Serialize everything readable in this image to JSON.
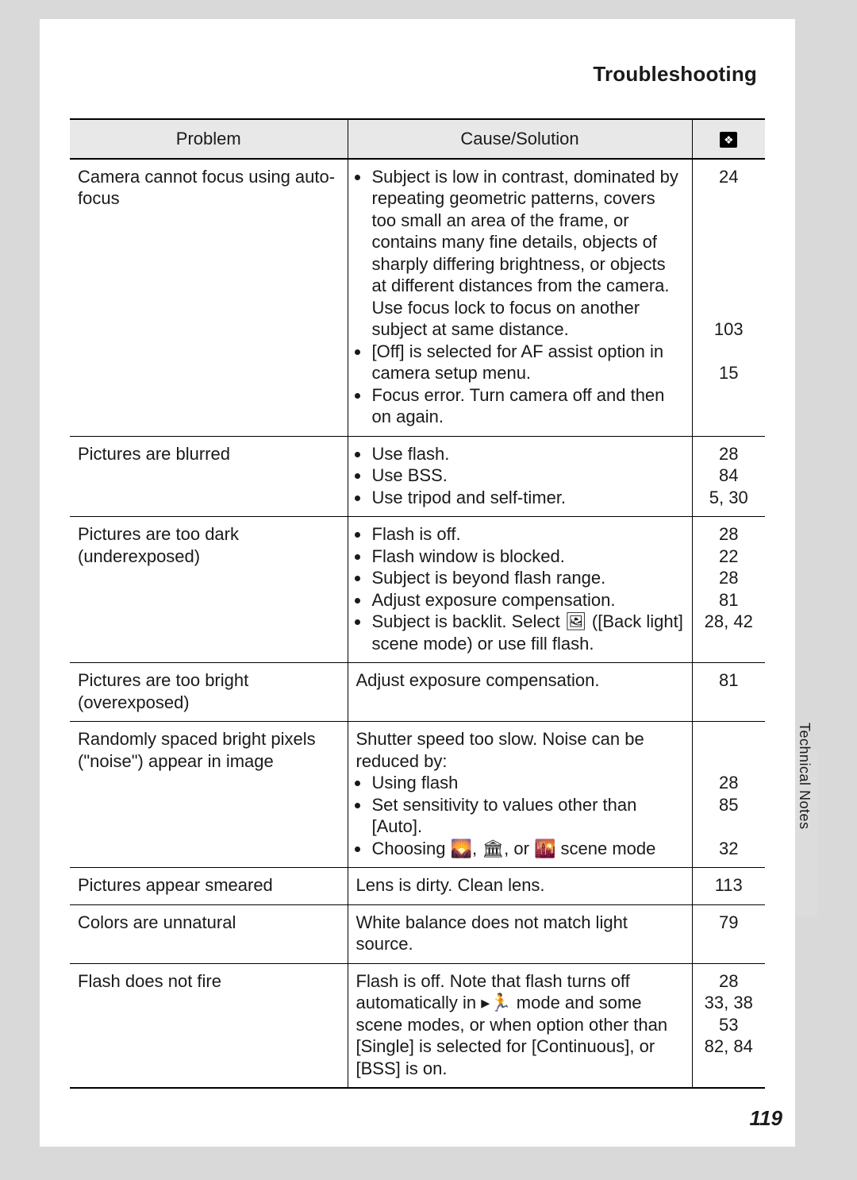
{
  "section_title": "Troubleshooting",
  "side_tab_label": "Technical Notes",
  "page_number": "119",
  "table": {
    "headers": {
      "problem": "Problem",
      "cause": "Cause/Solution",
      "page_icon_alt": "page reference"
    },
    "rows": [
      {
        "problem": "Camera cannot focus using auto-focus",
        "cause_type": "bullets",
        "bullets": [
          "Subject is low in contrast, dominated by repeating geometric patterns, covers too small an area of the frame, or contains many fine details, objects of sharply differing brightness, or objects at different distances from the camera. Use focus lock to focus on another subject at same distance.",
          "[Off] is selected for AF assist option in camera setup menu.",
          "Focus error. Turn camera off and then on again."
        ],
        "pages": "24\n\n\n\n\n\n\n103\n\n15"
      },
      {
        "problem": "Pictures are blurred",
        "cause_type": "bullets",
        "bullets": [
          "Use flash.",
          "Use BSS.",
          "Use tripod and self-timer."
        ],
        "pages": "28\n84\n5, 30"
      },
      {
        "problem": "Pictures are too dark (underexposed)",
        "cause_type": "bullets",
        "bullets": [
          "Flash is off.",
          "Flash window is blocked.",
          "Subject is beyond flash range.",
          "Adjust exposure compensation.",
          "Subject is backlit. Select 🖼 ([Back light] scene mode) or use fill flash."
        ],
        "pages": "28\n22\n28\n81\n28, 42"
      },
      {
        "problem": "Pictures are too bright (overexposed)",
        "cause_type": "plain",
        "text": "Adjust exposure compensation.",
        "pages": "81"
      },
      {
        "problem": "Randomly spaced bright pixels (\"noise\") appear in image",
        "cause_type": "intro_bullets",
        "intro": "Shutter speed too slow. Noise can be reduced by:",
        "bullets": [
          "Using flash",
          "Set sensitivity to values other than [Auto].",
          "Choosing 🌄, 🏛, or 🌇 scene mode"
        ],
        "pages": "\n\n28\n85\n\n32"
      },
      {
        "problem": "Pictures appear smeared",
        "cause_type": "plain",
        "text": "Lens is dirty. Clean lens.",
        "pages": "113"
      },
      {
        "problem": "Colors are unnatural",
        "cause_type": "plain",
        "text": "White balance does not match light source.",
        "pages": "79"
      },
      {
        "problem": "Flash does not fire",
        "cause_type": "plain",
        "text": "Flash is off. Note that flash turns off automatically in ▸🏃 mode and some scene modes, or when option other than [Single] is selected for [Continuous], or [BSS] is on.",
        "pages": "28\n33, 38\n53\n82, 84"
      }
    ]
  }
}
